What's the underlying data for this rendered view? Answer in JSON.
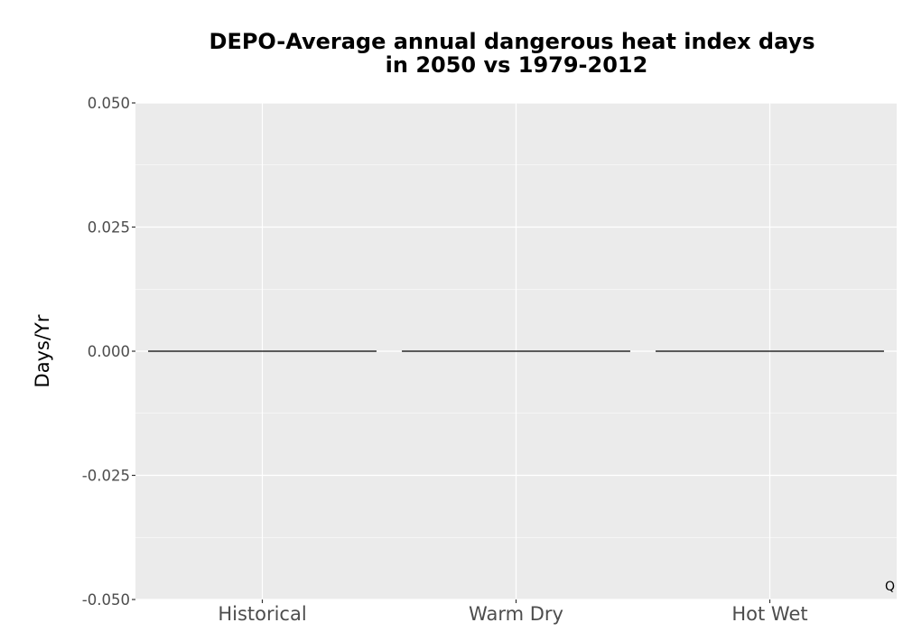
{
  "chart_data": {
    "type": "bar",
    "title_line1": "DEPO-Average annual dangerous heat index days",
    "title_line2": "in 2050 vs 1979-2012",
    "xlabel": "",
    "ylabel": "Days/Yr",
    "categories": [
      "Historical",
      "Warm Dry",
      "Hot Wet"
    ],
    "values": [
      0,
      0,
      0
    ],
    "ylim": [
      -0.05,
      0.05
    ],
    "yticks": [
      -0.05,
      -0.025,
      0,
      0.025,
      0.05
    ],
    "ytick_labels": [
      "-0.050",
      "-0.025",
      "0.000",
      "0.025",
      "0.050"
    ],
    "grid": true,
    "annotation": "Q"
  },
  "colors": {
    "panel_background": "#ebebeb",
    "grid_major": "#ffffff",
    "bar_outline": "#000000",
    "tick_text": "#4d4d4d"
  }
}
